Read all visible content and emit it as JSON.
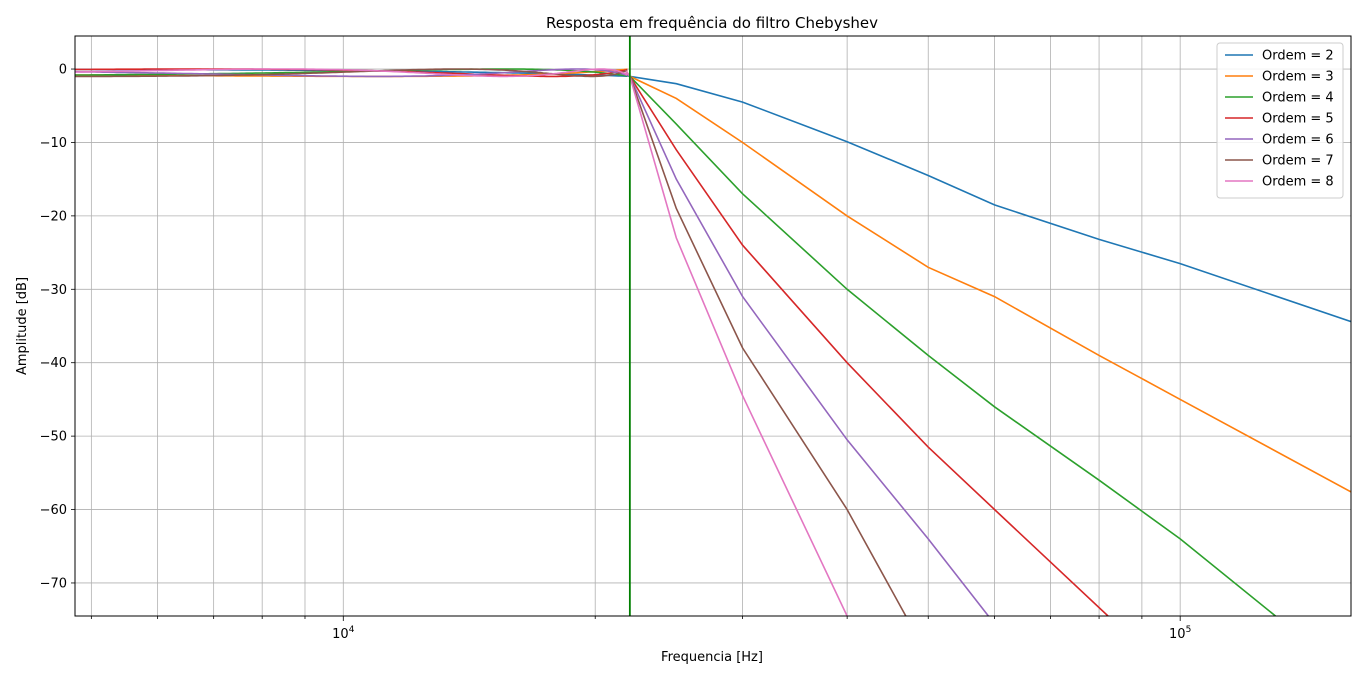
{
  "chart_data": {
    "type": "line",
    "title": "Resposta em frequência do filtro Chebyshev",
    "xlabel": "Frequencia [Hz]",
    "ylabel": "Amplitude [dB]",
    "xscale": "log",
    "xlim": [
      4780,
      160000
    ],
    "ylim": [
      -74.5,
      4.5
    ],
    "grid": "on (major and minor)",
    "legend_position": "top-right",
    "cutoff_frequency": 22000,
    "cutoff_line_color": "#007f00",
    "x_ticks": [
      {
        "value": 10000,
        "base": "10",
        "exp": "4"
      },
      {
        "value": 100000,
        "base": "10",
        "exp": "5"
      }
    ],
    "y_ticks": [
      {
        "value": 0,
        "label": "0"
      },
      {
        "value": -10,
        "label": "−10"
      },
      {
        "value": -20,
        "label": "−20"
      },
      {
        "value": -30,
        "label": "−30"
      },
      {
        "value": -40,
        "label": "−40"
      },
      {
        "value": -50,
        "label": "−50"
      },
      {
        "value": -60,
        "label": "−60"
      },
      {
        "value": -70,
        "label": "−70"
      }
    ],
    "series": [
      {
        "name": "Ordem = 2",
        "order": 2,
        "color": "#1f77b4",
        "x": [
          4780,
          10000,
          21800,
          22000,
          25000,
          30000,
          40000,
          50000,
          60000,
          80000,
          100000,
          160000
        ],
        "y": [
          -0.9,
          -0.6,
          -0.9,
          -1.0,
          -2.0,
          -4.5,
          -9.9,
          -14.5,
          -18.5,
          -23.2,
          -26.5,
          -34.4
        ]
      },
      {
        "name": "Ordem = 3",
        "order": 3,
        "color": "#ff7f0e",
        "x": [
          4780,
          10000,
          21800,
          22000,
          25000,
          30000,
          40000,
          50000,
          60000,
          80000,
          100000,
          160000
        ],
        "y": [
          -0.2,
          -0.3,
          -0.5,
          -1.0,
          -4.0,
          -10.0,
          -20.0,
          -27.0,
          -31.0,
          -39.0,
          -45.0,
          -57.6
        ]
      },
      {
        "name": "Ordem = 4",
        "order": 4,
        "color": "#2ca02c",
        "x": [
          4780,
          10000,
          21800,
          22000,
          25000,
          30000,
          40000,
          50000,
          60000,
          80000,
          100000,
          130000
        ],
        "y": [
          -0.8,
          -0.1,
          -0.5,
          -1.0,
          -7.5,
          -17.0,
          -30.0,
          -39.0,
          -46.0,
          -56.0,
          -64.0,
          -74.5
        ]
      },
      {
        "name": "Ordem = 5",
        "order": 5,
        "color": "#d62728",
        "x": [
          4780,
          10000,
          21800,
          22000,
          25000,
          30000,
          40000,
          50000,
          60000,
          82000
        ],
        "y": [
          -0.3,
          -0.1,
          -0.4,
          -1.0,
          -11.0,
          -24.0,
          -40.0,
          -51.5,
          -60.0,
          -74.5
        ]
      },
      {
        "name": "Ordem = 6",
        "order": 6,
        "color": "#9467bd",
        "x": [
          4780,
          10000,
          21800,
          22000,
          25000,
          30000,
          40000,
          50000,
          59000
        ],
        "y": [
          -0.7,
          -0.1,
          -0.5,
          -1.0,
          -15.0,
          -31.0,
          -50.5,
          -64.0,
          -74.5
        ]
      },
      {
        "name": "Ordem = 7",
        "order": 7,
        "color": "#8c564b",
        "x": [
          4780,
          10000,
          21800,
          22000,
          25000,
          30000,
          40000,
          47000
        ],
        "y": [
          -0.4,
          -0.2,
          -0.4,
          -1.0,
          -19.0,
          -38.0,
          -60.0,
          -74.5
        ]
      },
      {
        "name": "Ordem = 8",
        "order": 8,
        "color": "#e377c2",
        "x": [
          4780,
          10000,
          21800,
          22000,
          25000,
          30000,
          40000
        ],
        "y": [
          -0.5,
          -0.3,
          -0.4,
          -1.0,
          -23.0,
          -44.5,
          -74.5
        ]
      }
    ]
  }
}
